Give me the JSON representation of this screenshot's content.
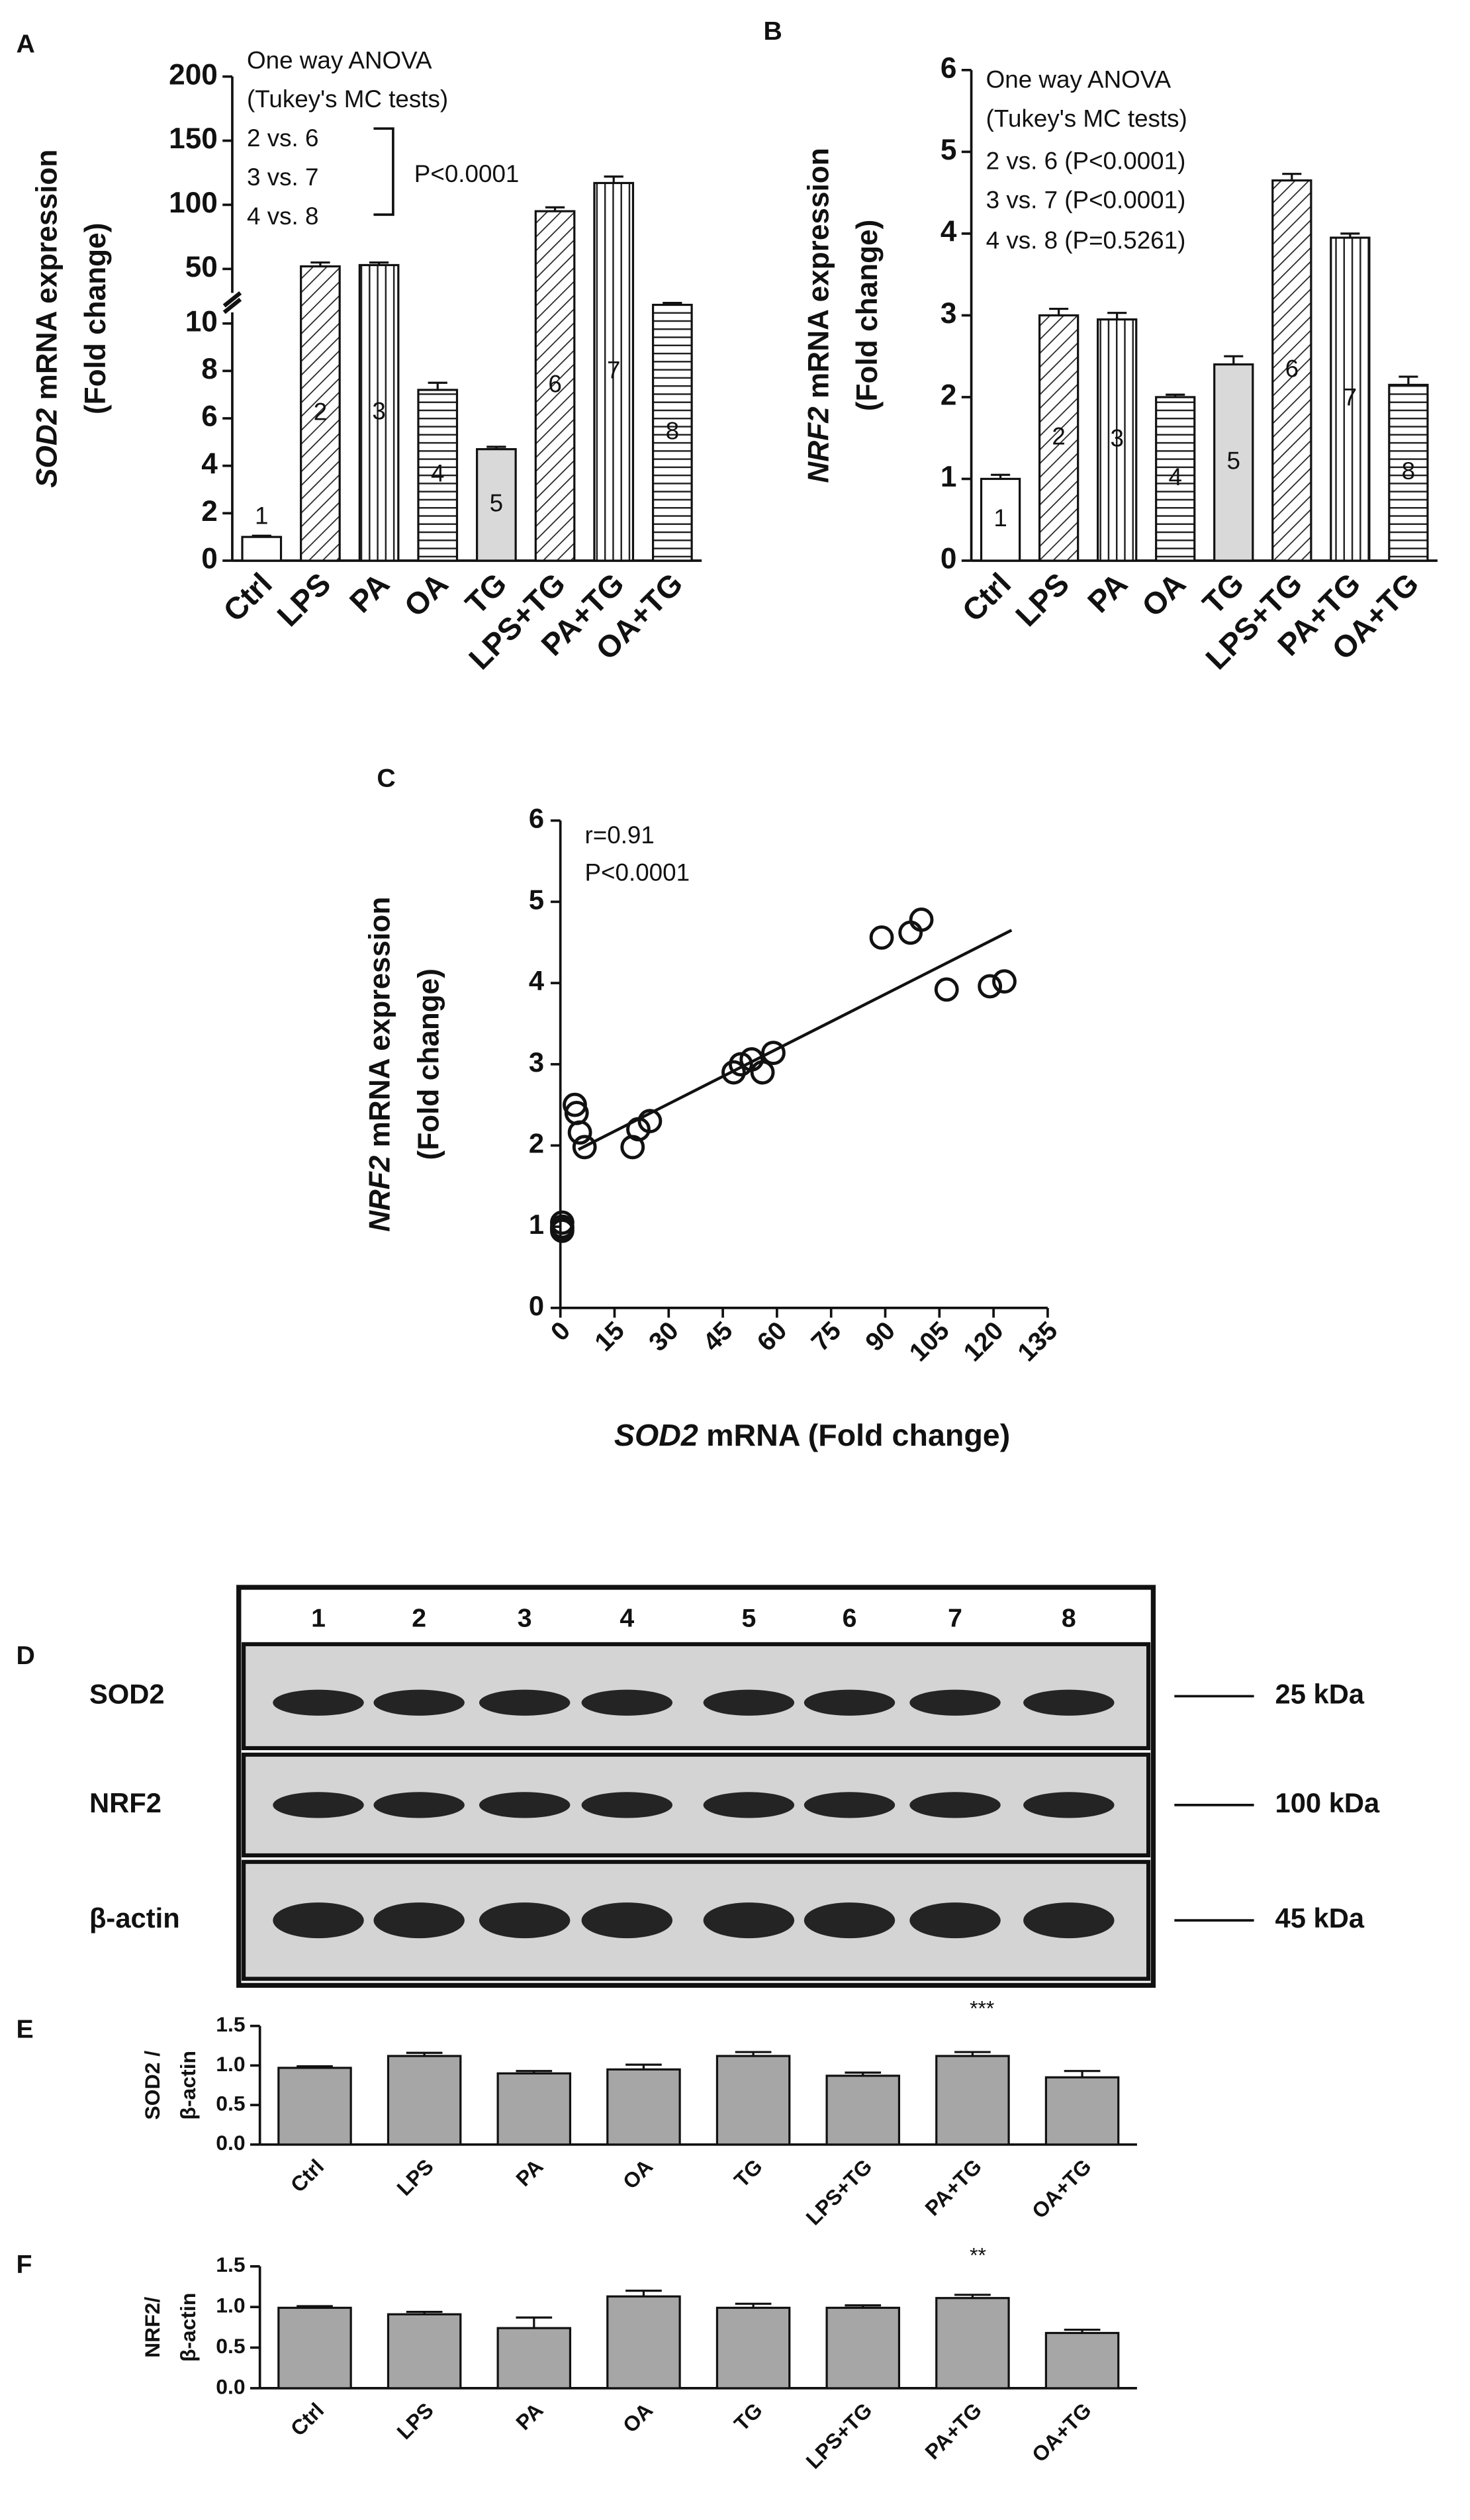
{
  "chart_data": [
    {
      "type": "bar",
      "panel": "A",
      "categories": [
        "Ctrl",
        "LPS",
        "PA",
        "OA",
        "TG",
        "LPS+TG",
        "PA+TG",
        "OA+TG"
      ],
      "values": [
        1,
        52,
        53,
        7.2,
        4.7,
        95,
        117,
        22
      ],
      "errors": [
        0.05,
        3,
        2,
        0.3,
        0.1,
        3,
        5,
        1.5
      ],
      "bar_labels": [
        "1",
        "2",
        "3",
        "4",
        "5",
        "6",
        "7",
        "8"
      ],
      "patterns": [
        "none",
        "diagonal",
        "vertical",
        "horizontal",
        "gray",
        "diagonal",
        "vertical",
        "horizontal"
      ],
      "ylim": [
        0,
        200
      ],
      "yticks": [
        0,
        2,
        4,
        6,
        8,
        10,
        50,
        100,
        150,
        200
      ],
      "broken_axis": 10,
      "ylabel_gene": "SOD2",
      "ylabel": [
        "mRNA expression",
        "(Fold change)"
      ],
      "annotations": [
        "One way ANOVA",
        "(Tukey's MC tests)",
        "2 vs. 6",
        "3 vs. 7",
        "4 vs. 8",
        "P<0.0001"
      ]
    },
    {
      "type": "bar",
      "panel": "B",
      "categories": [
        "Ctrl",
        "LPS",
        "PA",
        "OA",
        "TG",
        "LPS+TG",
        "PA+TG",
        "OA+TG"
      ],
      "values": [
        1.0,
        3.0,
        2.95,
        2.0,
        2.4,
        4.65,
        3.95,
        2.15
      ],
      "errors": [
        0.05,
        0.08,
        0.08,
        0.03,
        0.1,
        0.08,
        0.05,
        0.1
      ],
      "bar_labels": [
        "1",
        "2",
        "3",
        "4",
        "5",
        "6",
        "7",
        "8"
      ],
      "patterns": [
        "none",
        "diagonal",
        "vertical",
        "horizontal",
        "gray",
        "diagonal",
        "vertical",
        "horizontal"
      ],
      "ylim": [
        0,
        6
      ],
      "yticks": [
        0,
        1,
        2,
        3,
        4,
        5,
        6
      ],
      "ylabel_gene": "NRF2",
      "ylabel": [
        "mRNA expression",
        "(Fold change)"
      ],
      "annotations": [
        "One way ANOVA",
        "(Tukey's MC tests)",
        "2 vs. 6 (P<0.0001)",
        "3 vs. 7 (P<0.0001)",
        "4 vs. 8 (P=0.5261)"
      ]
    },
    {
      "type": "scatter",
      "panel": "C",
      "x": [
        0.5,
        0.5,
        0.5,
        0.5,
        4,
        4.5,
        5.4,
        6.7,
        20,
        21.6,
        24.8,
        48,
        50,
        53,
        56,
        59,
        89,
        97,
        100,
        107,
        119,
        123
      ],
      "y": [
        1.0,
        0.95,
        1.05,
        0.98,
        2.5,
        2.4,
        2.16,
        1.98,
        1.98,
        2.2,
        2.3,
        2.9,
        3.0,
        3.06,
        2.9,
        3.14,
        4.56,
        4.62,
        4.78,
        3.92,
        3.96,
        4.02
      ],
      "fit_line": {
        "x": [
          5,
          125
        ],
        "y": [
          1.95,
          4.65
        ]
      },
      "xlim": [
        0,
        135
      ],
      "xticks": [
        0,
        15,
        30,
        45,
        60,
        75,
        90,
        105,
        120,
        135
      ],
      "ylim": [
        0,
        6
      ],
      "yticks": [
        0,
        1,
        2,
        3,
        4,
        5,
        6
      ],
      "xlabel_gene": "SOD2",
      "xlabel": "mRNA (Fold change)",
      "ylabel_gene": "NRF2",
      "ylabel": [
        "mRNA expression",
        "(Fold change)"
      ],
      "annotations": [
        "r=0.91",
        "P<0.0001"
      ]
    },
    {
      "type": "blot",
      "panel": "D",
      "lanes": [
        "1",
        "2",
        "3",
        "4",
        "5",
        "6",
        "7",
        "8"
      ],
      "rows": [
        "SOD2",
        "NRF2",
        "β-actin"
      ],
      "markers": [
        "25 kDa",
        "100 kDa",
        "45 kDa"
      ]
    },
    {
      "type": "bar",
      "panel": "E",
      "categories": [
        "Ctrl",
        "LPS",
        "PA",
        "OA",
        "TG",
        "LPS+TG",
        "PA+TG",
        "OA+TG"
      ],
      "values": [
        0.97,
        1.12,
        0.9,
        0.95,
        1.12,
        0.87,
        1.12,
        0.85
      ],
      "errors": [
        0.02,
        0.04,
        0.03,
        0.06,
        0.05,
        0.04,
        0.05,
        0.08
      ],
      "color": "#a6a6a6",
      "ylim": [
        0,
        1.5
      ],
      "yticks": [
        {
          "value": 0,
          "label": "0.0"
        },
        {
          "value": 0.5,
          "label": "0.5"
        },
        {
          "value": 1,
          "label": "1.0"
        },
        {
          "value": 1.5,
          "label": "1.5"
        }
      ],
      "ylabel": [
        "SOD2 /",
        "β-actin"
      ],
      "annotations": [
        "***"
      ]
    },
    {
      "type": "bar",
      "panel": "F",
      "categories": [
        "Ctrl",
        "LPS",
        "PA",
        "OA",
        "TG",
        "LPS+TG",
        "PA+TG",
        "OA+TG"
      ],
      "values": [
        0.99,
        0.91,
        0.74,
        1.13,
        0.99,
        0.99,
        1.11,
        0.68
      ],
      "errors": [
        0.02,
        0.03,
        0.13,
        0.07,
        0.05,
        0.03,
        0.04,
        0.04
      ],
      "color": "#a6a6a6",
      "ylim": [
        0,
        1.5
      ],
      "yticks": [
        {
          "value": 0,
          "label": "0.0"
        },
        {
          "value": 0.5,
          "label": "0.5"
        },
        {
          "value": 1,
          "label": "1.0"
        },
        {
          "value": 1.5,
          "label": "1.5"
        }
      ],
      "ylabel": [
        "NRF2/",
        "β-actin"
      ],
      "annotations": [
        "**"
      ]
    }
  ]
}
